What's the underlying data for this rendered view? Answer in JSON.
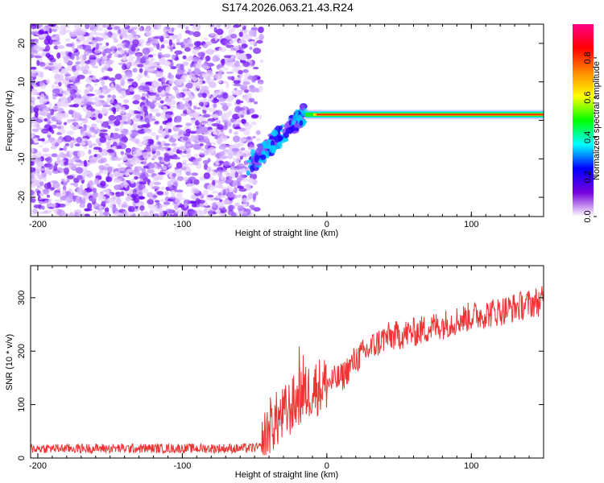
{
  "title": "S174.2026.063.21.43.R24",
  "chart_data": [
    {
      "type": "heatmap",
      "xlabel": "Height of straight line (km)",
      "ylabel": "Frequency (Hz)",
      "xlim": [
        -205,
        150
      ],
      "ylim": [
        -25,
        25
      ],
      "xticks": [
        -200,
        -100,
        0,
        100
      ],
      "yticks": [
        -20,
        -10,
        0,
        10,
        20
      ],
      "colorbar": {
        "label": "Normalized spectral amplitude",
        "range": [
          0.0,
          0.97
        ],
        "ticks": [
          0.0,
          0.2,
          0.4,
          0.6,
          0.8
        ],
        "tick_labels": [
          "0.0",
          "0.2",
          "0.4",
          "0.6",
          "0.8"
        ],
        "colors": [
          "#ffffff",
          "#7700dd",
          "#0000ff",
          "#00ffff",
          "#00ff00",
          "#ffff00",
          "#ff8800",
          "#ff0000",
          "#ff0088"
        ]
      },
      "regions": [
        {
          "name": "noise",
          "x_range": [
            -205,
            -55
          ],
          "freq_range": [
            -25,
            25
          ],
          "amplitude": 0.05
        },
        {
          "name": "transition",
          "x_range": [
            -55,
            -15
          ],
          "freq_start": -12,
          "freq_end": 2
        },
        {
          "name": "carrier",
          "x_range": [
            -15,
            150
          ],
          "freq": 1.5,
          "amplitude": 0.9
        }
      ]
    },
    {
      "type": "line",
      "xlabel": "Height of straight line (km)",
      "ylabel": "SNR (10 * v/v)",
      "xlim": [
        -205,
        150
      ],
      "ylim": [
        0,
        360
      ],
      "xticks": [
        -200,
        -100,
        0,
        100
      ],
      "yticks": [
        0,
        100,
        200,
        300
      ],
      "color": "#ee3333",
      "series": [
        {
          "name": "SNR",
          "x": [
            -205,
            -150,
            -100,
            -60,
            -45,
            -40,
            -30,
            -20,
            -10,
            0,
            10,
            20,
            40,
            60,
            80,
            100,
            120,
            150
          ],
          "values": [
            18,
            18,
            18,
            18,
            20,
            60,
            80,
            110,
            130,
            140,
            150,
            185,
            225,
            235,
            250,
            265,
            275,
            295
          ]
        }
      ]
    }
  ]
}
